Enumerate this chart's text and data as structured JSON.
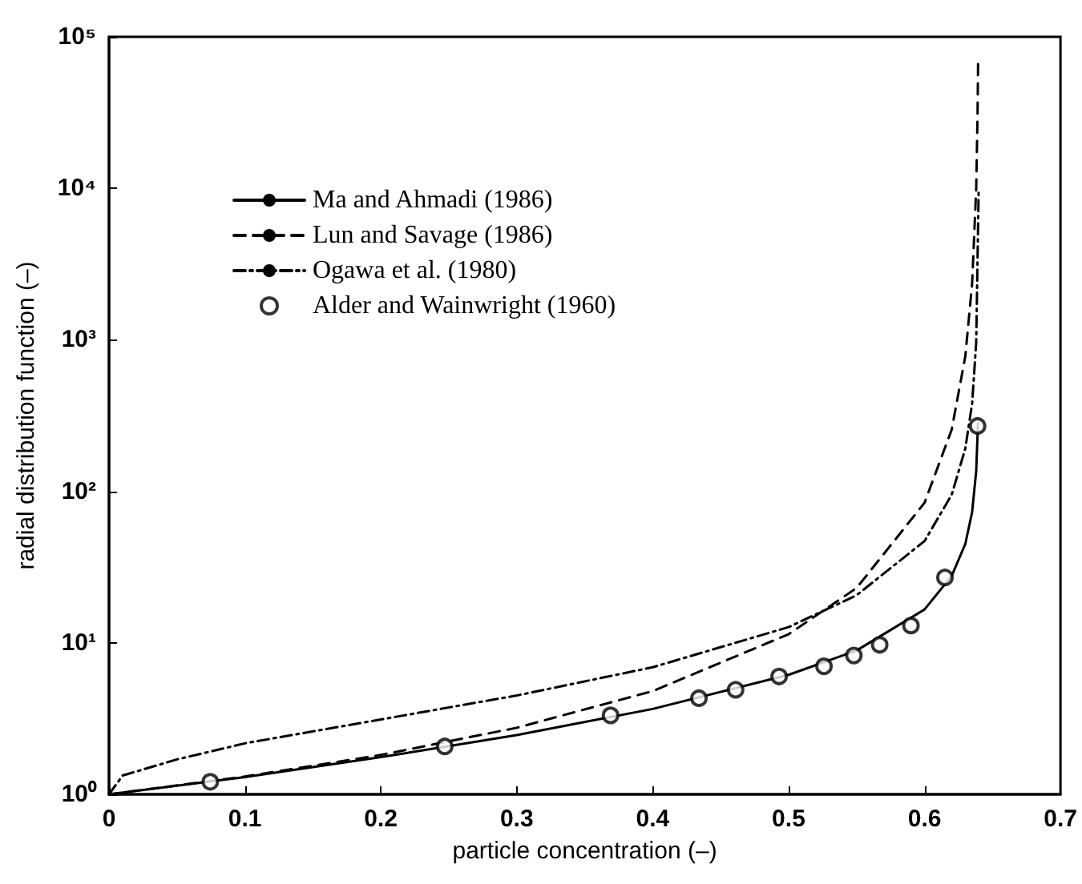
{
  "chart_data": {
    "type": "line",
    "xlabel": "particle concentration (–)",
    "ylabel": "radial distribution function (–)",
    "xlim": [
      0,
      0.7
    ],
    "xticks": [
      0,
      0.1,
      0.2,
      0.3,
      0.4,
      0.5,
      0.6,
      0.7
    ],
    "ylim": [
      1,
      100000
    ],
    "yticks": [
      {
        "value": 1,
        "label": "10⁰"
      },
      {
        "value": 10,
        "label": "10¹"
      },
      {
        "value": 100,
        "label": "10²"
      },
      {
        "value": 1000,
        "label": "10³"
      },
      {
        "value": 10000,
        "label": "10⁴"
      },
      {
        "value": 100000,
        "label": "10⁵"
      }
    ],
    "log": "y",
    "grid": false,
    "legend": "top left",
    "series": [
      {
        "name": "Ma and Ahmadi (1986)",
        "line_style": "solid",
        "marker": "none",
        "color": "#000000",
        "x": [
          0,
          0.1,
          0.2,
          0.3,
          0.4,
          0.5,
          0.55,
          0.6,
          0.62,
          0.63,
          0.635,
          0.638,
          0.6393
        ],
        "values": [
          1,
          1.3,
          1.76,
          2.46,
          3.66,
          6.15,
          8.9,
          16.6,
          27.7,
          45,
          73,
          136,
          280
        ]
      },
      {
        "name": "Lun and Savage (1986)",
        "line_style": "dashed",
        "marker": "none",
        "color": "#000000",
        "x": [
          0,
          0.1,
          0.2,
          0.3,
          0.4,
          0.5,
          0.55,
          0.6,
          0.62,
          0.63,
          0.635,
          0.638,
          0.639,
          0.6394
        ],
        "values": [
          1,
          1.31,
          1.82,
          2.75,
          4.8,
          11.4,
          23,
          84,
          256,
          780,
          2350,
          10000,
          31000,
          70000
        ]
      },
      {
        "name": "Ogawa et al. (1980)",
        "line_style": "dashdot",
        "marker": "none",
        "color": "#000000",
        "x": [
          0,
          0.01,
          0.05,
          0.1,
          0.2,
          0.3,
          0.4,
          0.5,
          0.55,
          0.6,
          0.62,
          0.63,
          0.635,
          0.638,
          0.6398
        ],
        "values": [
          1,
          1.33,
          1.7,
          2.17,
          3.12,
          4.49,
          6.9,
          12.7,
          20.6,
          47,
          95,
          192,
          380,
          960,
          9600
        ]
      },
      {
        "name": "Alder and Wainwright (1960)",
        "type": "scatter",
        "marker": "circle",
        "color": "#000000",
        "x": [
          0.0745,
          0.247,
          0.369,
          0.434,
          0.461,
          0.493,
          0.526,
          0.548,
          0.567,
          0.59,
          0.615,
          0.639
        ],
        "values": [
          1.21,
          2.07,
          3.32,
          4.31,
          4.9,
          6.0,
          7.0,
          8.25,
          9.7,
          13,
          27,
          270
        ]
      }
    ]
  }
}
